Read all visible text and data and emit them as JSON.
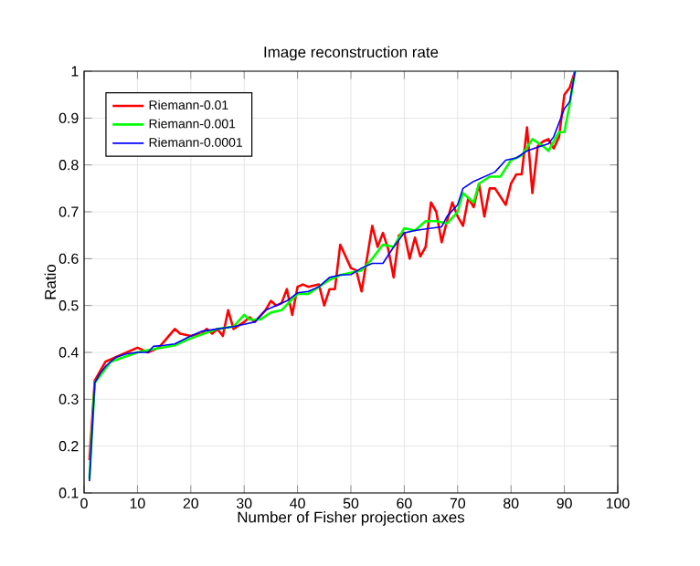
{
  "chart_data": {
    "type": "line",
    "title": "Image reconstruction rate",
    "xlabel": "Number of Fisher projection axes",
    "ylabel": "Ratio",
    "xlim": [
      0,
      100
    ],
    "ylim": [
      0.1,
      1
    ],
    "xticks": [
      0,
      10,
      20,
      30,
      40,
      50,
      60,
      70,
      80,
      90,
      100
    ],
    "yticks": [
      0.1,
      0.2,
      0.3,
      0.4,
      0.5,
      0.6,
      0.7,
      0.8,
      0.9,
      1
    ],
    "grid": true,
    "legend": "top left",
    "line_style": "solid",
    "marker": "none",
    "series": [
      {
        "name": "Riemann-0.01",
        "color": "#ff0000",
        "x": [
          1,
          2,
          4,
          6,
          8,
          10,
          11,
          12,
          14,
          17,
          18,
          20,
          22,
          23,
          24,
          25,
          26,
          27,
          28,
          30,
          31,
          32,
          34,
          35,
          36,
          37,
          38,
          39,
          40,
          41,
          42,
          44,
          45,
          46,
          47,
          48,
          50,
          51,
          52,
          54,
          55,
          56,
          57,
          58,
          59,
          60,
          61,
          62,
          63,
          64,
          65,
          66,
          67,
          68,
          69,
          70,
          71,
          72,
          73,
          74,
          75,
          76,
          77,
          79,
          80,
          81,
          82,
          83,
          84,
          85,
          86,
          87,
          88,
          89,
          90,
          91,
          92
        ],
        "values": [
          0.17,
          0.34,
          0.38,
          0.39,
          0.4,
          0.41,
          0.405,
          0.4,
          0.41,
          0.45,
          0.44,
          0.435,
          0.44,
          0.45,
          0.44,
          0.45,
          0.435,
          0.49,
          0.45,
          0.465,
          0.475,
          0.465,
          0.49,
          0.51,
          0.5,
          0.505,
          0.535,
          0.48,
          0.54,
          0.545,
          0.54,
          0.545,
          0.5,
          0.535,
          0.535,
          0.63,
          0.58,
          0.575,
          0.53,
          0.67,
          0.625,
          0.655,
          0.62,
          0.56,
          0.65,
          0.655,
          0.6,
          0.645,
          0.605,
          0.625,
          0.72,
          0.7,
          0.635,
          0.68,
          0.72,
          0.69,
          0.67,
          0.73,
          0.71,
          0.76,
          0.69,
          0.75,
          0.75,
          0.715,
          0.76,
          0.78,
          0.78,
          0.88,
          0.74,
          0.84,
          0.85,
          0.855,
          0.835,
          0.86,
          0.95,
          0.965,
          1.0
        ]
      },
      {
        "name": "Riemann-0.001",
        "color": "#00ff00",
        "x": [
          1,
          2,
          5,
          10,
          12,
          17,
          20,
          25,
          28,
          30,
          31,
          33,
          35,
          37,
          40,
          42,
          44,
          46,
          48,
          50,
          52,
          54,
          56,
          58,
          60,
          62,
          64,
          66,
          68,
          70,
          71,
          73,
          74,
          76,
          78,
          80,
          82,
          84,
          86,
          87,
          88,
          89,
          90,
          91,
          92
        ],
        "values": [
          0.13,
          0.335,
          0.38,
          0.4,
          0.405,
          0.415,
          0.43,
          0.45,
          0.455,
          0.48,
          0.47,
          0.47,
          0.485,
          0.49,
          0.525,
          0.525,
          0.54,
          0.555,
          0.565,
          0.57,
          0.575,
          0.6,
          0.63,
          0.625,
          0.665,
          0.66,
          0.68,
          0.68,
          0.675,
          0.7,
          0.74,
          0.72,
          0.76,
          0.775,
          0.775,
          0.81,
          0.82,
          0.855,
          0.84,
          0.83,
          0.85,
          0.87,
          0.87,
          0.93,
          1.0
        ]
      },
      {
        "name": "Riemann-0.0001",
        "color": "#0000ff",
        "x": [
          1,
          2,
          3,
          4,
          5,
          6,
          8,
          10,
          12,
          13,
          15,
          17,
          20,
          22,
          25,
          28,
          30,
          32,
          34,
          36,
          38,
          40,
          42,
          44,
          46,
          48,
          50,
          52,
          54,
          56,
          58,
          60,
          62,
          65,
          67,
          68,
          70,
          71,
          73,
          75,
          77,
          79,
          81,
          83,
          85,
          87,
          88,
          90,
          91,
          92
        ],
        "values": [
          0.125,
          0.335,
          0.355,
          0.37,
          0.38,
          0.39,
          0.397,
          0.4,
          0.4,
          0.413,
          0.415,
          0.418,
          0.435,
          0.445,
          0.45,
          0.455,
          0.46,
          0.465,
          0.49,
          0.5,
          0.51,
          0.527,
          0.53,
          0.54,
          0.56,
          0.565,
          0.566,
          0.58,
          0.59,
          0.59,
          0.625,
          0.655,
          0.66,
          0.665,
          0.668,
          0.69,
          0.715,
          0.75,
          0.765,
          0.775,
          0.785,
          0.81,
          0.815,
          0.83,
          0.838,
          0.845,
          0.86,
          0.92,
          0.935,
          1.0
        ]
      }
    ]
  }
}
